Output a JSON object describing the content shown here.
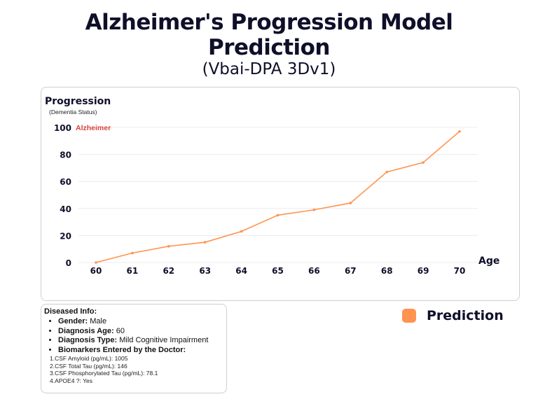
{
  "header": {
    "title_line1": "Alzheimer's Progression Model",
    "title_line2": "Prediction",
    "subtitle": "(Vbai-DPA 3Dv1)"
  },
  "chart_data": {
    "type": "line",
    "ylabel": "Progression",
    "ylabel_sub": "(Dementia Status)",
    "xlabel": "Age",
    "x": [
      60,
      61,
      62,
      63,
      64,
      65,
      66,
      67,
      68,
      69,
      70
    ],
    "series": [
      {
        "name": "Prediction",
        "values": [
          0,
          7,
          12,
          15,
          23,
          35,
          39,
          44,
          67,
          74,
          97
        ]
      }
    ],
    "yticks": [
      0,
      20,
      40,
      60,
      80,
      100
    ],
    "ylim": [
      0,
      100
    ],
    "xlim": [
      60,
      70
    ],
    "grid": "horizontal",
    "annotation": "Alzheimer",
    "legend_position": "bottom-right",
    "line_color": "#ff9350",
    "annotation_color": "#d9453b"
  },
  "info": {
    "heading": "Diseased Info:",
    "gender_label": "Gender:",
    "gender_value": "Male",
    "age_label": "Diagnosis Age:",
    "age_value": "60",
    "type_label": "Diagnosis Type:",
    "type_value": "Mild Cognitive Impairment",
    "biomarkers_label": "Biomarkers Entered by the Doctor:",
    "biomarkers": [
      "1.CSF Amyloid (pg/mL): 1005",
      "2.CSF Total Tau (pg/mL): 146",
      "3.CSF Phosphorylated Tau (pg/mL): 78.1",
      "4.APOE4 ?: Yes"
    ]
  },
  "legend": {
    "label": "Prediction",
    "color": "#ff9350"
  }
}
